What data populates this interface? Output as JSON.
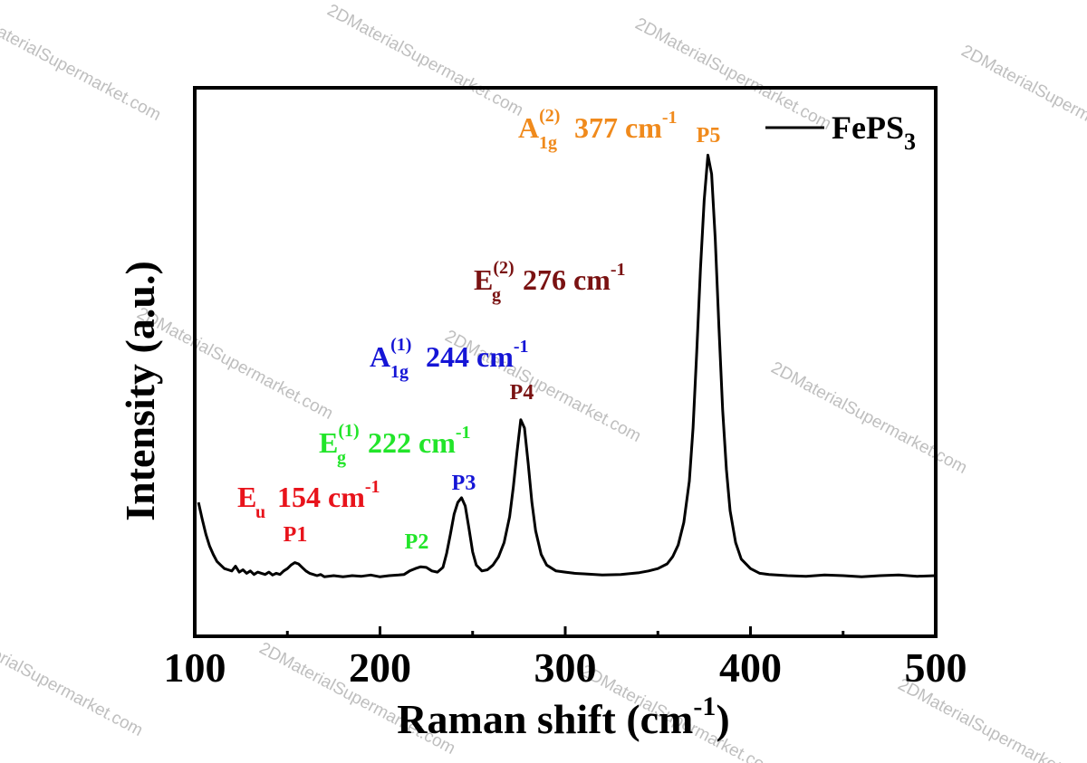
{
  "chart_data": {
    "type": "line",
    "xlabel": "Raman shift (cm",
    "xlabel_sup": "-1",
    "xlabel_tail": ")",
    "ylabel": "Intensity (a.u.)",
    "xlim": [
      100,
      500
    ],
    "x_ticks": [
      100,
      200,
      300,
      400,
      500
    ],
    "y_ticks_shown": false,
    "legend": {
      "position": "top-right",
      "label": "FePS",
      "label_sub": "3"
    },
    "series": [
      {
        "name": "FePS3",
        "color": "#000000",
        "x": [
          102,
          104,
          106,
          108,
          110,
          112,
          114,
          116,
          118,
          120,
          122,
          124,
          126,
          128,
          130,
          132,
          134,
          136,
          138,
          140,
          142,
          144,
          146,
          148,
          150,
          152,
          154,
          156,
          158,
          160,
          162,
          164,
          166,
          168,
          170,
          175,
          180,
          185,
          190,
          195,
          200,
          205,
          210,
          213,
          216,
          219,
          222,
          225,
          228,
          231,
          234,
          236,
          238,
          240,
          242,
          244,
          246,
          248,
          250,
          252,
          255,
          258,
          261,
          264,
          267,
          270,
          272,
          274,
          276,
          278,
          280,
          282,
          284,
          287,
          290,
          295,
          300,
          305,
          310,
          320,
          330,
          340,
          345,
          350,
          355,
          358,
          361,
          364,
          367,
          369,
          371,
          373,
          375,
          377,
          379,
          381,
          383,
          385,
          387,
          389,
          392,
          395,
          400,
          405,
          410,
          420,
          430,
          440,
          450,
          460,
          470,
          480,
          490,
          500
        ],
        "y": [
          0.62,
          0.48,
          0.35,
          0.25,
          0.18,
          0.12,
          0.09,
          0.06,
          0.05,
          0.04,
          0.08,
          0.03,
          0.05,
          0.02,
          0.04,
          0.01,
          0.03,
          0.02,
          0.01,
          0.03,
          0.005,
          0.02,
          0.01,
          0.04,
          0.06,
          0.09,
          0.11,
          0.1,
          0.07,
          0.04,
          0.02,
          0.01,
          0.0,
          0.01,
          -0.01,
          0.0,
          -0.01,
          0.0,
          -0.005,
          0.005,
          -0.01,
          0.0,
          0.005,
          0.01,
          0.04,
          0.06,
          0.075,
          0.07,
          0.04,
          0.03,
          0.07,
          0.19,
          0.35,
          0.52,
          0.62,
          0.66,
          0.59,
          0.4,
          0.2,
          0.09,
          0.04,
          0.05,
          0.09,
          0.16,
          0.28,
          0.5,
          0.75,
          1.05,
          1.32,
          1.25,
          0.95,
          0.62,
          0.38,
          0.18,
          0.09,
          0.04,
          0.03,
          0.02,
          0.015,
          0.005,
          0.01,
          0.025,
          0.04,
          0.06,
          0.1,
          0.16,
          0.26,
          0.45,
          0.8,
          1.25,
          1.9,
          2.6,
          3.18,
          3.56,
          3.4,
          2.85,
          2.1,
          1.4,
          0.9,
          0.55,
          0.28,
          0.14,
          0.06,
          0.02,
          0.01,
          0.0,
          -0.005,
          0.005,
          0.0,
          -0.01,
          0.0,
          0.005,
          -0.005,
          0.0
        ]
      }
    ],
    "annotations": [
      {
        "mode": "E",
        "mode_sub": "u",
        "mode_sup": "",
        "value": "154 cm",
        "unit_sup": "-1",
        "peak": "P1",
        "color": "#e8131b"
      },
      {
        "mode": "E",
        "mode_sub": "g",
        "mode_sup": "(1)",
        "value": "222 cm",
        "unit_sup": "-1",
        "peak": "P2",
        "color": "#22e52a"
      },
      {
        "mode": "A",
        "mode_sub": "1g",
        "mode_sup": "(1)",
        "value": "244 cm",
        "unit_sup": "-1",
        "peak": "P3",
        "color": "#1515d6"
      },
      {
        "mode": "E",
        "mode_sub": "g",
        "mode_sup": "(2)",
        "value": "276 cm",
        "unit_sup": "-1",
        "peak": "P4",
        "color": "#7a1212"
      },
      {
        "mode": "A",
        "mode_sub": "1g",
        "mode_sup": "(2)",
        "value": "377 cm",
        "unit_sup": "-1",
        "peak": "P5",
        "color": "#f08a1c"
      }
    ]
  },
  "watermark": "2DMaterialSupermarket.com"
}
